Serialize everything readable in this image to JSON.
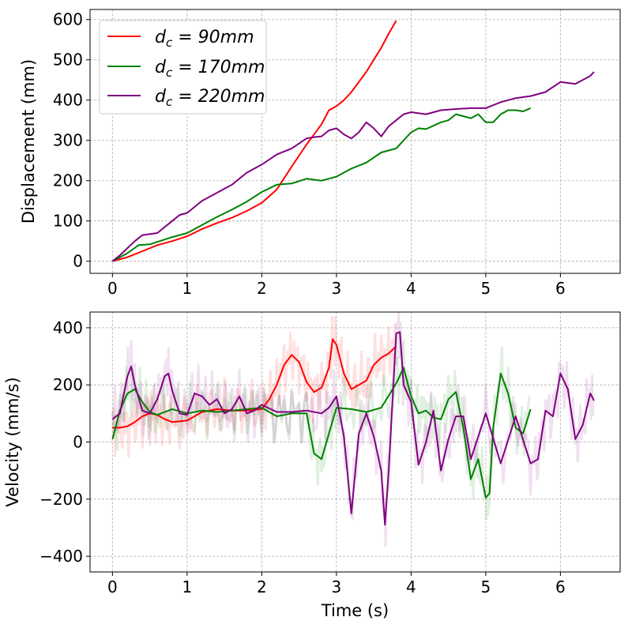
{
  "chart_data": [
    {
      "type": "line",
      "title": "",
      "xlabel": "",
      "ylabel": "Displacement (mm)",
      "xlim": [
        -0.3,
        6.8
      ],
      "ylim": [
        -30,
        625
      ],
      "xticks": [
        0,
        1,
        2,
        3,
        4,
        5,
        6
      ],
      "yticks": [
        0,
        100,
        200,
        300,
        400,
        500,
        600
      ],
      "grid": true,
      "legend": {
        "placement": "top-left",
        "entries": [
          "d_c = 90mm",
          "d_c = 170mm",
          "d_c = 220mm"
        ]
      },
      "series": [
        {
          "name": "d_c = 90mm",
          "color": "#ff0000",
          "x": [
            0,
            0.2,
            0.4,
            0.6,
            0.8,
            1.0,
            1.2,
            1.4,
            1.6,
            1.8,
            2.0,
            2.2,
            2.4,
            2.6,
            2.8,
            2.9,
            3.0,
            3.1,
            3.2,
            3.3,
            3.4,
            3.5,
            3.6,
            3.7,
            3.8
          ],
          "y": [
            0,
            10,
            25,
            40,
            50,
            62,
            80,
            95,
            108,
            125,
            145,
            178,
            235,
            290,
            340,
            375,
            385,
            400,
            420,
            445,
            470,
            500,
            530,
            565,
            597
          ]
        },
        {
          "name": "d_c = 170mm",
          "color": "#008000",
          "x": [
            0,
            0.2,
            0.35,
            0.5,
            0.8,
            1.0,
            1.2,
            1.4,
            1.6,
            1.8,
            2.0,
            2.2,
            2.4,
            2.6,
            2.8,
            3.0,
            3.2,
            3.4,
            3.6,
            3.8,
            3.9,
            4.0,
            4.1,
            4.2,
            4.4,
            4.5,
            4.6,
            4.7,
            4.8,
            4.9,
            5.0,
            5.1,
            5.2,
            5.3,
            5.4,
            5.5,
            5.6
          ],
          "y": [
            0,
            20,
            40,
            42,
            60,
            70,
            90,
            110,
            128,
            148,
            172,
            190,
            193,
            205,
            200,
            210,
            230,
            245,
            270,
            280,
            300,
            320,
            330,
            328,
            345,
            350,
            365,
            360,
            355,
            365,
            345,
            345,
            365,
            375,
            375,
            372,
            380
          ]
        },
        {
          "name": "d_c = 220mm",
          "color": "#800080",
          "x": [
            0,
            0.1,
            0.3,
            0.4,
            0.6,
            0.8,
            0.9,
            1.0,
            1.2,
            1.4,
            1.6,
            1.8,
            2.0,
            2.2,
            2.4,
            2.6,
            2.7,
            2.8,
            2.9,
            3.0,
            3.1,
            3.2,
            3.3,
            3.4,
            3.5,
            3.6,
            3.7,
            3.8,
            3.9,
            4.0,
            4.2,
            4.4,
            4.6,
            4.8,
            5.0,
            5.2,
            5.4,
            5.6,
            5.8,
            6.0,
            6.2,
            6.4,
            6.45
          ],
          "y": [
            0,
            15,
            50,
            65,
            70,
            100,
            115,
            120,
            150,
            170,
            190,
            220,
            240,
            265,
            280,
            305,
            308,
            310,
            325,
            330,
            315,
            305,
            320,
            345,
            330,
            310,
            335,
            350,
            365,
            370,
            365,
            375,
            378,
            380,
            380,
            395,
            405,
            410,
            420,
            445,
            440,
            460,
            470
          ]
        }
      ]
    },
    {
      "type": "line",
      "title": "",
      "xlabel": "Time (s)",
      "ylabel": "Velocity (mm/s)",
      "xlim": [
        -0.3,
        6.8
      ],
      "ylim": [
        -455,
        455
      ],
      "xticks": [
        0,
        1,
        2,
        3,
        4,
        5,
        6
      ],
      "yticks": [
        -400,
        -200,
        0,
        200,
        400
      ],
      "grid": true,
      "series": [
        {
          "name": "d_c = 90mm",
          "color": "#ff0000",
          "x": [
            0,
            0.1,
            0.2,
            0.3,
            0.4,
            0.5,
            0.6,
            0.7,
            0.8,
            1.0,
            1.2,
            1.4,
            1.6,
            1.8,
            2.0,
            2.1,
            2.2,
            2.3,
            2.4,
            2.5,
            2.6,
            2.7,
            2.8,
            2.9,
            2.95,
            3.0,
            3.1,
            3.2,
            3.3,
            3.4,
            3.5,
            3.6,
            3.7,
            3.8
          ],
          "y": [
            50,
            50,
            55,
            70,
            90,
            100,
            95,
            80,
            70,
            75,
            105,
            115,
            110,
            110,
            115,
            150,
            200,
            270,
            305,
            280,
            210,
            175,
            190,
            260,
            360,
            340,
            240,
            185,
            200,
            215,
            270,
            295,
            310,
            335
          ]
        },
        {
          "name": "d_c = 170mm",
          "color": "#008000",
          "x": [
            0,
            0.1,
            0.2,
            0.3,
            0.4,
            0.5,
            0.6,
            0.8,
            1.0,
            1.2,
            1.4,
            1.6,
            1.8,
            2.0,
            2.2,
            2.4,
            2.6,
            2.7,
            2.8,
            2.9,
            3.0,
            3.2,
            3.4,
            3.6,
            3.8,
            3.9,
            4.0,
            4.1,
            4.2,
            4.3,
            4.4,
            4.5,
            4.6,
            4.7,
            4.8,
            4.9,
            5.0,
            5.05,
            5.1,
            5.2,
            5.3,
            5.4,
            5.5,
            5.6
          ],
          "y": [
            10,
            110,
            170,
            185,
            140,
            105,
            95,
            115,
            100,
            110,
            105,
            110,
            115,
            120,
            90,
            100,
            100,
            -40,
            -60,
            30,
            120,
            115,
            105,
            120,
            205,
            260,
            160,
            100,
            110,
            85,
            80,
            150,
            175,
            50,
            -130,
            -60,
            -195,
            -180,
            50,
            240,
            170,
            50,
            30,
            115
          ]
        },
        {
          "name": "d_c = 220mm",
          "color": "#800080",
          "x": [
            0,
            0.1,
            0.2,
            0.25,
            0.3,
            0.4,
            0.5,
            0.6,
            0.7,
            0.75,
            0.8,
            0.9,
            1.0,
            1.1,
            1.2,
            1.3,
            1.4,
            1.5,
            1.6,
            1.7,
            1.8,
            1.9,
            2.0,
            2.2,
            2.4,
            2.6,
            2.8,
            2.9,
            3.0,
            3.1,
            3.2,
            3.3,
            3.4,
            3.5,
            3.6,
            3.65,
            3.7,
            3.8,
            3.85,
            3.9,
            4.0,
            4.1,
            4.2,
            4.3,
            4.4,
            4.5,
            4.6,
            4.7,
            4.8,
            5.0,
            5.2,
            5.4,
            5.6,
            5.7,
            5.8,
            5.9,
            6.0,
            6.1,
            6.2,
            6.3,
            6.4,
            6.45
          ],
          "y": [
            80,
            100,
            230,
            265,
            200,
            110,
            100,
            150,
            230,
            240,
            180,
            100,
            95,
            170,
            160,
            130,
            150,
            100,
            115,
            160,
            100,
            110,
            130,
            105,
            105,
            110,
            100,
            120,
            160,
            20,
            -250,
            30,
            100,
            20,
            -100,
            -290,
            -100,
            380,
            385,
            200,
            140,
            -80,
            0,
            110,
            -100,
            10,
            90,
            90,
            -60,
            100,
            -75,
            90,
            -75,
            -60,
            110,
            90,
            240,
            185,
            10,
            60,
            170,
            145
          ]
        }
      ]
    }
  ]
}
